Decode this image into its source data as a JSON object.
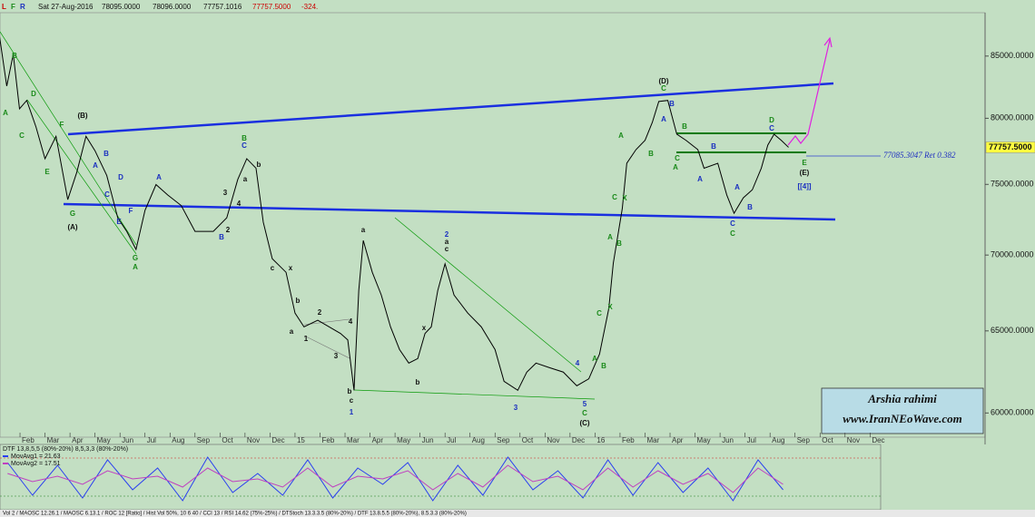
{
  "header": {
    "flags": [
      "L",
      "F",
      "R"
    ],
    "date": "Sat 27-Aug-2016",
    "open": "78095.0000",
    "high": "78096.0000",
    "low": "77757.1016",
    "close": "77757.5000",
    "change": "-324."
  },
  "chart_data": [
    {
      "type": "line",
      "log_scale": true,
      "color": "#000000",
      "x": [
        0.18,
        0.47,
        0.73,
        0.98,
        1.27,
        1.64,
        2.0,
        2.44,
        2.91,
        3.27,
        3.64,
        4.0,
        4.47,
        4.91,
        5.27,
        5.64,
        6.0,
        6.44,
        6.91,
        7.45,
        8.0,
        8.73,
        9.27,
        9.71,
        10.07,
        10.44,
        10.73,
        11.09,
        11.64,
        12.0,
        12.36,
        12.91,
        13.82,
        14.11,
        14.36,
        14.55,
        14.73,
        15.09,
        15.45,
        15.82,
        16.18,
        16.55,
        16.91,
        17.2,
        17.45,
        17.71,
        18.0,
        18.36,
        18.91,
        19.45,
        20.0,
        20.36,
        20.91,
        21.27,
        21.64,
        22.18,
        22.73,
        23.27,
        23.75,
        24.18,
        24.55,
        24.73,
        25.09,
        25.27,
        25.64,
        26.0,
        26.29,
        26.55,
        26.91,
        27.27,
        27.64,
        28.11,
        28.36,
        28.91,
        29.27,
        29.56,
        29.93,
        30.29,
        30.65,
        30.91,
        31.16,
        31.45,
        31.74
      ],
      "values": [
        86670,
        82550,
        85150,
        80740,
        81400,
        79320,
        76900,
        78600,
        73890,
        75880,
        78600,
        77500,
        75650,
        72590,
        71630,
        70380,
        73120,
        74980,
        74220,
        73460,
        71630,
        71630,
        72590,
        75360,
        76900,
        76190,
        72280,
        69750,
        68830,
        66140,
        65260,
        65680,
        64840,
        64430,
        61340,
        67620,
        71000,
        68830,
        67320,
        65260,
        63830,
        62990,
        63270,
        64840,
        65260,
        67620,
        69400,
        67320,
        66140,
        65260,
        63830,
        61880,
        61340,
        62440,
        62990,
        62710,
        62440,
        61610,
        62030,
        63550,
        66430,
        69440,
        73250,
        76560,
        77590,
        78290,
        79670,
        81320,
        81400,
        78760,
        78290,
        77590,
        76190,
        76560,
        74220,
        72910,
        74020,
        74600,
        76190,
        77930,
        78760,
        78290,
        77757.5
      ],
      "xlim": [
        0.2,
        39.6
      ],
      "xticks": [
        {
          "value": 1,
          "label": "Feb"
        },
        {
          "value": 2,
          "label": "Mar"
        },
        {
          "value": 3,
          "label": "Apr"
        },
        {
          "value": 4,
          "label": "May"
        },
        {
          "value": 5,
          "label": "Jun"
        },
        {
          "value": 6,
          "label": "Jul"
        },
        {
          "value": 7,
          "label": "Aug"
        },
        {
          "value": 8,
          "label": "Sep"
        },
        {
          "value": 9,
          "label": "Oct"
        },
        {
          "value": 10,
          "label": "Nov"
        },
        {
          "value": 11,
          "label": "Dec"
        },
        {
          "value": 12,
          "label": "15"
        },
        {
          "value": 13,
          "label": "Feb"
        },
        {
          "value": 14,
          "label": "Mar"
        },
        {
          "value": 15,
          "label": "Apr"
        },
        {
          "value": 16,
          "label": "May"
        },
        {
          "value": 17,
          "label": "Jun"
        },
        {
          "value": 18,
          "label": "Jul"
        },
        {
          "value": 19,
          "label": "Aug"
        },
        {
          "value": 20,
          "label": "Sep"
        },
        {
          "value": 21,
          "label": "Oct"
        },
        {
          "value": 22,
          "label": "Nov"
        },
        {
          "value": 23,
          "label": "Dec"
        },
        {
          "value": 24,
          "label": "16"
        },
        {
          "value": 25,
          "label": "Feb"
        },
        {
          "value": 26,
          "label": "Mar"
        },
        {
          "value": 27,
          "label": "Apr"
        },
        {
          "value": 28,
          "label": "May"
        },
        {
          "value": 29,
          "label": "Jun"
        },
        {
          "value": 30,
          "label": "Jul"
        },
        {
          "value": 31,
          "label": "Aug"
        },
        {
          "value": 32,
          "label": "Sep"
        },
        {
          "value": 33,
          "label": "Oct"
        },
        {
          "value": 34,
          "label": "Nov"
        },
        {
          "value": 35,
          "label": "Dec"
        }
      ],
      "ylim": [
        58700,
        88600
      ],
      "yticks": [
        {
          "value": 60000,
          "label": "60000.0000"
        },
        {
          "value": 65000,
          "label": "65000.0000"
        },
        {
          "value": 70000,
          "label": "70000.0000"
        },
        {
          "value": 75000,
          "label": "75000.0000"
        },
        {
          "value": 80000,
          "label": "80000.0000"
        },
        {
          "value": 85000,
          "label": "85000.0000"
        }
      ],
      "last_price": {
        "value": 77757.5,
        "label": "77757.5000"
      },
      "retracement_label": "77085.3047 Ret 0.382",
      "wave_labels": [
        {
          "text": "(B)",
          "color": "#111111"
        },
        {
          "text": "(A)",
          "color": "#111111"
        },
        {
          "text": "G",
          "color": "#1a8a1a"
        },
        {
          "text": "A",
          "color": "#1a8a1a"
        },
        {
          "text": "B",
          "color": "#1a8a1a"
        },
        {
          "text": "C",
          "color": "#1a8a1a"
        },
        {
          "text": "D",
          "color": "#1a8a1a"
        },
        {
          "text": "E",
          "color": "#1a8a1a"
        },
        {
          "text": "F",
          "color": "#1a8a1a"
        },
        {
          "text": "A",
          "color": "#1a2fc0"
        },
        {
          "text": "B",
          "color": "#1a2fc0"
        },
        {
          "text": "C",
          "color": "#1a2fc0"
        },
        {
          "text": "D",
          "color": "#1a2fc0"
        },
        {
          "text": "E",
          "color": "#1a2fc0"
        },
        {
          "text": "F",
          "color": "#1a2fc0"
        },
        {
          "text": "G",
          "color": "#1a8a1a"
        },
        {
          "text": "A",
          "color": "#1a8a1a"
        },
        {
          "text": "A",
          "color": "#1a2fc0"
        },
        {
          "text": "B",
          "color": "#1a2fc0"
        },
        {
          "text": "B",
          "color": "#1a8a1a"
        },
        {
          "text": "C",
          "color": "#1a2fc0"
        },
        {
          "text": "b",
          "color": "#111111"
        },
        {
          "text": "a",
          "color": "#111111"
        },
        {
          "text": "3",
          "color": "#111111"
        },
        {
          "text": "4",
          "color": "#111111"
        },
        {
          "text": "2",
          "color": "#111111"
        },
        {
          "text": "c",
          "color": "#111111"
        },
        {
          "text": "x",
          "color": "#111111"
        },
        {
          "text": "b",
          "color": "#111111"
        },
        {
          "text": "a",
          "color": "#111111"
        },
        {
          "text": "2",
          "color": "#111111"
        },
        {
          "text": "1",
          "color": "#111111"
        },
        {
          "text": "3",
          "color": "#111111"
        },
        {
          "text": "4",
          "color": "#111111"
        },
        {
          "text": "a",
          "color": "#111111"
        },
        {
          "text": "b",
          "color": "#111111"
        },
        {
          "text": "c",
          "color": "#111111"
        },
        {
          "text": "1",
          "color": "#1a2fc0"
        },
        {
          "text": "x",
          "color": "#111111"
        },
        {
          "text": "b",
          "color": "#111111"
        },
        {
          "text": "2",
          "color": "#1a2fc0"
        },
        {
          "text": "c",
          "color": "#111111"
        },
        {
          "text": "a",
          "color": "#111111"
        },
        {
          "text": "3",
          "color": "#1a2fc0"
        },
        {
          "text": "4",
          "color": "#1a2fc0"
        },
        {
          "text": "5",
          "color": "#1a2fc0"
        },
        {
          "text": "C",
          "color": "#1a8a1a"
        },
        {
          "text": "(C)",
          "color": "#111111"
        },
        {
          "text": "A",
          "color": "#1a8a1a"
        },
        {
          "text": "B",
          "color": "#1a8a1a"
        },
        {
          "text": "C",
          "color": "#1a8a1a"
        },
        {
          "text": "X",
          "color": "#1a8a1a"
        },
        {
          "text": "A",
          "color": "#1a8a1a"
        },
        {
          "text": "B",
          "color": "#1a8a1a"
        },
        {
          "text": "C",
          "color": "#1a8a1a"
        },
        {
          "text": "X",
          "color": "#1a8a1a"
        },
        {
          "text": "A",
          "color": "#1a8a1a"
        },
        {
          "text": "B",
          "color": "#1a8a1a"
        },
        {
          "text": "(D)",
          "color": "#111111"
        },
        {
          "text": "C",
          "color": "#1a8a1a"
        },
        {
          "text": "A",
          "color": "#1a2fc0"
        },
        {
          "text": "B",
          "color": "#1a2fc0"
        },
        {
          "text": "B",
          "color": "#1a8a1a"
        },
        {
          "text": "C",
          "color": "#1a8a1a"
        },
        {
          "text": "A",
          "color": "#1a8a1a"
        },
        {
          "text": "B",
          "color": "#1a2fc0"
        },
        {
          "text": "A",
          "color": "#1a2fc0"
        },
        {
          "text": "A",
          "color": "#1a2fc0"
        },
        {
          "text": "B",
          "color": "#1a2fc0"
        },
        {
          "text": "C",
          "color": "#1a2fc0"
        },
        {
          "text": "C",
          "color": "#1a8a1a"
        },
        {
          "text": "D",
          "color": "#1a8a1a"
        },
        {
          "text": "C",
          "color": "#1a2fc0"
        },
        {
          "text": "E",
          "color": "#1a8a1a"
        },
        {
          "text": "(E)",
          "color": "#111111"
        },
        {
          "text": "[[4]]",
          "color": "#1a2fc0"
        }
      ]
    },
    {
      "type": "line",
      "title": "DTF 13,8,5,5 (80%-20%) 8,5,3,3 (80%-20%)",
      "x": [
        0.5,
        1.5,
        2.5,
        3.5,
        4.5,
        5.5,
        6.5,
        7.5,
        8.5,
        9.5,
        10.5,
        11.5,
        12.5,
        13.5,
        14.5,
        15.5,
        16.5,
        17.5,
        18.5,
        19.5,
        20.5,
        21.5,
        22.5,
        23.5,
        24.5,
        25.5,
        26.5,
        27.5,
        28.5,
        29.5,
        30.5,
        31.5
      ],
      "xlim": [
        0.2,
        35.4
      ],
      "ylim": [
        0,
        100
      ],
      "series": [
        {
          "name": "MovAvg1 = 21.63",
          "color": "#2a3ff0",
          "values": [
            80,
            20,
            75,
            15,
            85,
            30,
            70,
            10,
            90,
            25,
            60,
            20,
            85,
            15,
            70,
            40,
            80,
            10,
            75,
            20,
            90,
            30,
            65,
            15,
            85,
            20,
            80,
            25,
            70,
            10,
            85,
            30
          ]
        },
        {
          "name": "MovAvg2 = 17.51",
          "color": "#c040c0",
          "values": [
            60,
            45,
            55,
            40,
            65,
            50,
            55,
            35,
            70,
            45,
            50,
            35,
            70,
            35,
            55,
            50,
            65,
            30,
            60,
            35,
            75,
            45,
            55,
            30,
            70,
            35,
            65,
            40,
            60,
            25,
            70,
            40
          ]
        }
      ]
    }
  ],
  "watermark": {
    "name": "Arshia rahimi",
    "site": "www.IranNEoWave.com"
  },
  "footer": "Vol 2 / MAOSC 12.26.1 / MAOSC 6.13.1 / ROC 12 [Ratio] / Hist Vol 50%, 10 6 40 / CCI 13 / RSI 14.62 (75%-25%) / DTStoch 13.3.3.5 (80%-20%) / DTF 13.8.5.5 (80%-20%), 8.5.3.3 (80%-20%)"
}
